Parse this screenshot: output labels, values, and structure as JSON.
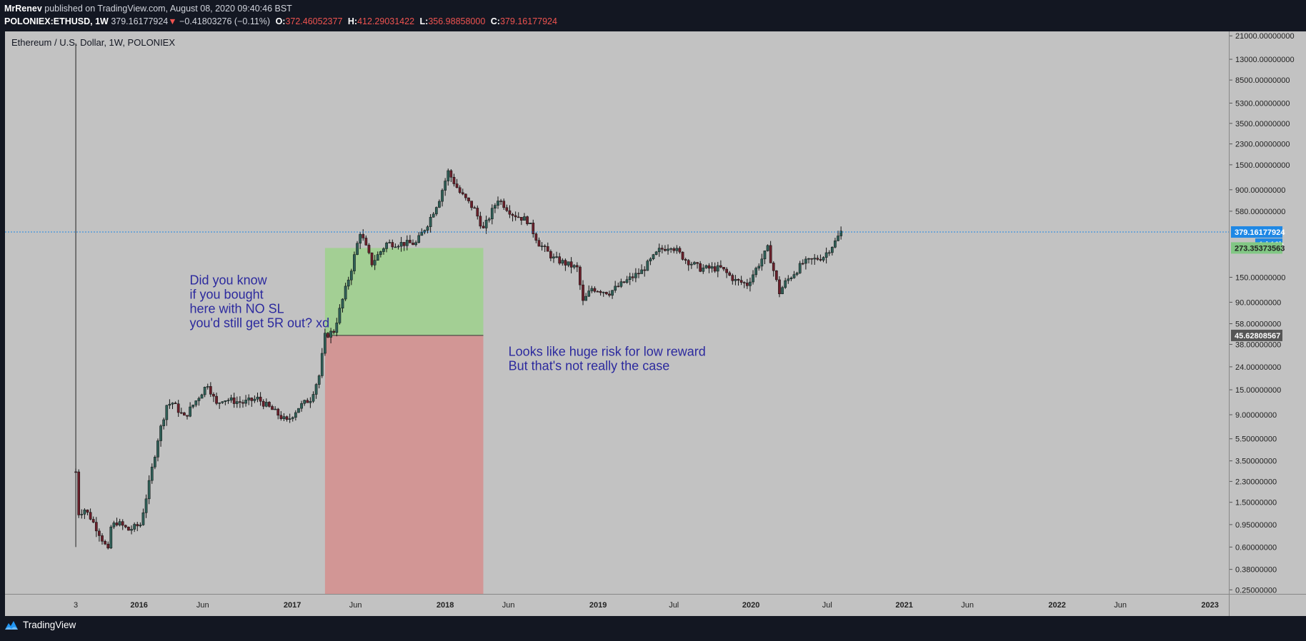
{
  "header": {
    "author": "MrRenev",
    "published": " published on TradingView.com, August 08, 2020 09:40:46 BST",
    "symbol": "POLONIEX:ETHUSD, 1W",
    "last": " 379.16177924",
    "change": " −0.41803276 (−0.11%)",
    "open_label": "O:",
    "open_value": "372.46052377",
    "high_label": "H:",
    "high_value": "412.29031422",
    "low_label": "L:",
    "low_value": "356.98858000",
    "close_label": "C:",
    "close_value": "379.16177924"
  },
  "chart_title": "Ethereum / U.S. Dollar, 1W, POLONIEX",
  "footer": {
    "brand": "TradingView"
  },
  "chart_data": {
    "type": "candlestick",
    "scale": "log",
    "y_ticks": [
      {
        "label": "21000.00000000",
        "value": 21000
      },
      {
        "label": "13000.00000000",
        "value": 13000
      },
      {
        "label": "8500.00000000",
        "value": 8500
      },
      {
        "label": "5300.00000000",
        "value": 5300
      },
      {
        "label": "3500.00000000",
        "value": 3500
      },
      {
        "label": "2300.00000000",
        "value": 2300
      },
      {
        "label": "1500.00000000",
        "value": 1500
      },
      {
        "label": "900.00000000",
        "value": 900
      },
      {
        "label": "580.00000000",
        "value": 580
      },
      {
        "label": "150.00000000",
        "value": 150
      },
      {
        "label": "90.00000000",
        "value": 90
      },
      {
        "label": "58.00000000",
        "value": 58
      },
      {
        "label": "38.00000000",
        "value": 38
      },
      {
        "label": "24.00000000",
        "value": 24
      },
      {
        "label": "15.00000000",
        "value": 15
      },
      {
        "label": "9.00000000",
        "value": 9
      },
      {
        "label": "5.50000000",
        "value": 5.5
      },
      {
        "label": "3.50000000",
        "value": 3.5
      },
      {
        "label": "2.30000000",
        "value": 2.3
      },
      {
        "label": "1.50000000",
        "value": 1.5
      },
      {
        "label": "0.95000000",
        "value": 0.95
      },
      {
        "label": "0.60000000",
        "value": 0.6
      },
      {
        "label": "0.38000000",
        "value": 0.38
      },
      {
        "label": "0.25000000",
        "value": 0.25
      }
    ],
    "x_ticks": [
      {
        "label": "3",
        "date": "2015-08-03"
      },
      {
        "label": "2016",
        "date": "2016-01-01"
      },
      {
        "label": "Jun",
        "date": "2016-06-01"
      },
      {
        "label": "2017",
        "date": "2017-01-01"
      },
      {
        "label": "Jun",
        "date": "2017-06-01"
      },
      {
        "label": "2018",
        "date": "2018-01-01"
      },
      {
        "label": "Jun",
        "date": "2018-06-01"
      },
      {
        "label": "2019",
        "date": "2019-01-01"
      },
      {
        "label": "Jul",
        "date": "2019-07-01"
      },
      {
        "label": "2020",
        "date": "2020-01-01"
      },
      {
        "label": "Jul",
        "date": "2020-07-01"
      },
      {
        "label": "2021",
        "date": "2021-01-01"
      },
      {
        "label": "Jun",
        "date": "2021-06-01"
      },
      {
        "label": "2022",
        "date": "2022-01-01"
      },
      {
        "label": "Jun",
        "date": "2022-06-01"
      },
      {
        "label": "2023",
        "date": "2023-01-01"
      }
    ],
    "x_range": [
      "2015-02-15",
      "2023-02-15"
    ],
    "y_range": [
      0.23,
      23000
    ],
    "price_line": {
      "value": 379.16177924,
      "label": "379.16177924",
      "countdown": "1d 16h",
      "color": "#1e88e5"
    },
    "target_label": {
      "value": 273.35373563,
      "label": "273.35373563",
      "color": "#81c784"
    },
    "entry_label": {
      "value": 45.62808567,
      "label": "45.62808567",
      "color": "#555555"
    },
    "position": {
      "start": "2017-03-20",
      "end": "2018-04-02",
      "entry": 45.62808567,
      "target": 273.35373563,
      "stop": 0.23,
      "profit_color": "#a3cf94",
      "loss_color": "#d29695"
    },
    "annotations": [
      {
        "lines": [
          "Did you know",
          "if you bought",
          "here with NO SL",
          "you'd still get 5R out? xd"
        ],
        "date": "2016-05-01",
        "value": 130,
        "color": "#2c2a9e"
      },
      {
        "lines": [
          "Looks like huge risk for low reward",
          "But that's not really the case"
        ],
        "date": "2018-06-01",
        "value": 30,
        "color": "#2c2a9e"
      }
    ],
    "weekly_path": [
      [
        "2015-08-03",
        2.8
      ],
      [
        "2015-08-10",
        1.2
      ],
      [
        "2015-08-24",
        1.3
      ],
      [
        "2015-09-07",
        1.1
      ],
      [
        "2015-09-28",
        0.8
      ],
      [
        "2015-10-19",
        0.55
      ],
      [
        "2015-10-26",
        0.9
      ],
      [
        "2015-11-09",
        1.0
      ],
      [
        "2015-12-07",
        0.85
      ],
      [
        "2016-01-04",
        0.95
      ],
      [
        "2016-01-25",
        2.2
      ],
      [
        "2016-02-15",
        5.5
      ],
      [
        "2016-03-07",
        11.0
      ],
      [
        "2016-03-21",
        11.5
      ],
      [
        "2016-04-18",
        8.5
      ],
      [
        "2016-05-16",
        12.0
      ],
      [
        "2016-06-13",
        17.0
      ],
      [
        "2016-07-04",
        11.0
      ],
      [
        "2016-07-18",
        12.5
      ],
      [
        "2016-09-05",
        11.5
      ],
      [
        "2016-10-10",
        12.5
      ],
      [
        "2016-11-21",
        9.5
      ],
      [
        "2016-12-19",
        7.8
      ],
      [
        "2017-01-16",
        10.5
      ],
      [
        "2017-02-13",
        12.5
      ],
      [
        "2017-03-06",
        20.0
      ],
      [
        "2017-03-20",
        45.0
      ],
      [
        "2017-04-10",
        50.0
      ],
      [
        "2017-05-22",
        180.0
      ],
      [
        "2017-06-12",
        380.0
      ],
      [
        "2017-07-10",
        200.0
      ],
      [
        "2017-08-14",
        300.0
      ],
      [
        "2017-09-11",
        300.0
      ],
      [
        "2017-10-23",
        300.0
      ],
      [
        "2017-11-20",
        450.0
      ],
      [
        "2017-12-18",
        750.0
      ],
      [
        "2018-01-08",
        1300.0
      ],
      [
        "2018-02-05",
        850.0
      ],
      [
        "2018-03-12",
        600.0
      ],
      [
        "2018-04-02",
        400.0
      ],
      [
        "2018-05-07",
        750.0
      ],
      [
        "2018-06-11",
        550.0
      ],
      [
        "2018-07-16",
        480.0
      ],
      [
        "2018-08-13",
        300.0
      ],
      [
        "2018-09-17",
        220.0
      ],
      [
        "2018-11-12",
        180.0
      ],
      [
        "2018-11-26",
        90.0
      ],
      [
        "2018-12-17",
        120.0
      ],
      [
        "2019-01-28",
        110.0
      ],
      [
        "2019-03-04",
        135.0
      ],
      [
        "2019-04-15",
        170.0
      ],
      [
        "2019-05-27",
        260.0
      ],
      [
        "2019-06-24",
        290.0
      ],
      [
        "2019-07-29",
        215.0
      ],
      [
        "2019-09-02",
        180.0
      ],
      [
        "2019-10-21",
        180.0
      ],
      [
        "2019-11-25",
        140.0
      ],
      [
        "2019-12-23",
        130.0
      ],
      [
        "2020-02-10",
        270.0
      ],
      [
        "2020-03-09",
        110.0
      ],
      [
        "2020-03-23",
        135.0
      ],
      [
        "2020-05-04",
        200.0
      ],
      [
        "2020-06-22",
        230.0
      ],
      [
        "2020-07-20",
        310.0
      ],
      [
        "2020-08-03",
        379.16
      ]
    ]
  }
}
